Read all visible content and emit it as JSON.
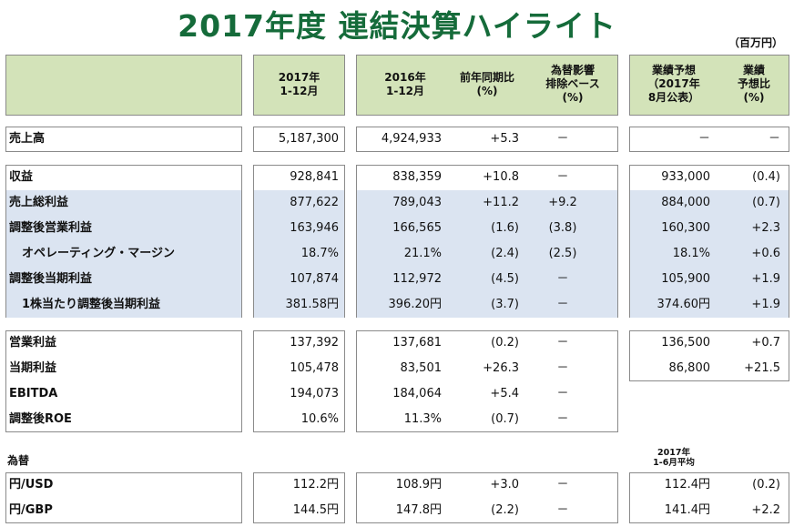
{
  "title": "2017年度 連結決算ハイライト",
  "unit": "（百万円）",
  "headers": {
    "col2017": "2017年\n1-12月",
    "col2016": "2016年\n1-12月",
    "yoy": "前年同期比\n(%)",
    "fx_excl": "為替影響\n排除ベース\n(%)",
    "forecast": "業績予想\n（2017年\n8月公表）",
    "forecast_ratio": "業績\n予想比\n(%)"
  },
  "rows": [
    {
      "label": "売上高",
      "v2017": "5,187,300",
      "v2016": "4,924,933",
      "yoy": "+5.3",
      "fx": "－",
      "fc": "－",
      "fcr": "－"
    },
    {
      "label": "収益",
      "v2017": "928,841",
      "v2016": "838,359",
      "yoy": "+10.8",
      "fx": "－",
      "fc": "933,000",
      "fcr": "(0.4)"
    },
    {
      "label": "売上総利益",
      "v2017": "877,622",
      "v2016": "789,043",
      "yoy": "+11.2",
      "fx": "+9.2",
      "fc": "884,000",
      "fcr": "(0.7)"
    },
    {
      "label": "調整後営業利益",
      "v2017": "163,946",
      "v2016": "166,565",
      "yoy": "(1.6)",
      "fx": "(3.8)",
      "fc": "160,300",
      "fcr": "+2.3"
    },
    {
      "label": "オペレーティング・マージン",
      "v2017": "18.7%",
      "v2016": "21.1%",
      "yoy": "(2.4)",
      "fx": "(2.5)",
      "fc": "18.1%",
      "fcr": "+0.6"
    },
    {
      "label": "調整後当期利益",
      "v2017": "107,874",
      "v2016": "112,972",
      "yoy": "(4.5)",
      "fx": "－",
      "fc": "105,900",
      "fcr": "+1.9"
    },
    {
      "label": "1株当たり調整後当期利益",
      "v2017": "381.58円",
      "v2016": "396.20円",
      "yoy": "(3.7)",
      "fx": "－",
      "fc": "374.60円",
      "fcr": "+1.9"
    },
    {
      "label": "営業利益",
      "v2017": "137,392",
      "v2016": "137,681",
      "yoy": "(0.2)",
      "fx": "－",
      "fc": "136,500",
      "fcr": "+0.7"
    },
    {
      "label": "当期利益",
      "v2017": "105,478",
      "v2016": "83,501",
      "yoy": "+26.3",
      "fx": "－",
      "fc": "86,800",
      "fcr": "+21.5"
    },
    {
      "label": "EBITDA",
      "v2017": "194,073",
      "v2016": "184,064",
      "yoy": "+5.4",
      "fx": "－",
      "fc": "",
      "fcr": ""
    },
    {
      "label": "調整後ROE",
      "v2017": "10.6%",
      "v2016": "11.3%",
      "yoy": "(0.7)",
      "fx": "－",
      "fc": "",
      "fcr": ""
    }
  ],
  "fx": {
    "title": "為替",
    "avg_note": "2017年\n1-6月平均",
    "rows": [
      {
        "label": "円/USD",
        "v2017": "112.2円",
        "v2016": "108.9円",
        "yoy": "+3.0",
        "fx": "－",
        "fc": "112.4円",
        "fcr": "(0.2)"
      },
      {
        "label": "円/GBP",
        "v2017": "144.5円",
        "v2016": "147.8円",
        "yoy": "(2.2)",
        "fx": "－",
        "fc": "141.4円",
        "fcr": "+2.2"
      }
    ]
  }
}
